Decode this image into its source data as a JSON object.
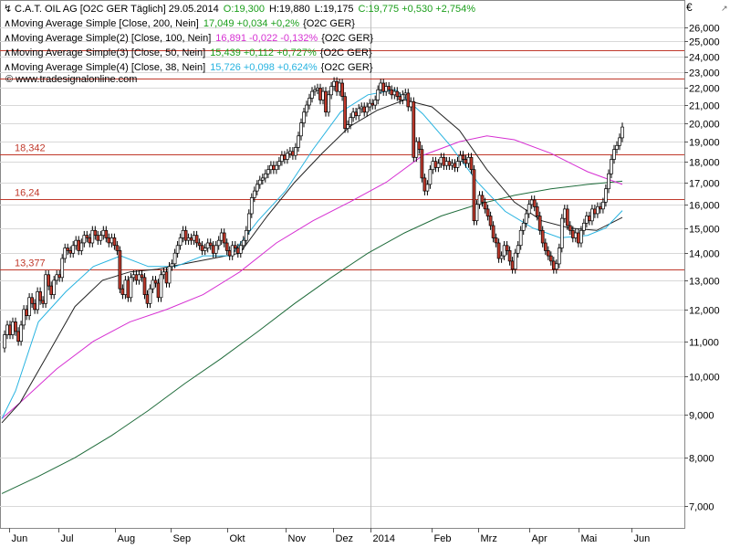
{
  "chart_data": {
    "type": "candlestick",
    "header": {
      "symbol_line": "C.A.T. OIL AG [O2C GER  Täglich] 29.05.2014",
      "open": "O:19,300",
      "high": "H:19,880",
      "low": "L:19,175",
      "close": "C:19,775 +0,530 +2,754%"
    },
    "indicators": [
      {
        "label": "Moving Average Simple [Close, 200, Nein]",
        "value": "17,049 +0,034 +0,2%",
        "suffix": "{O2C GER}",
        "color": "#1e6b3a"
      },
      {
        "label": "Moving Average Simple(2) [Close, 100, Nein]",
        "value": "16,891 -0,022 -0,132%",
        "suffix": "{O2C GER}",
        "color": "#d62fd2"
      },
      {
        "label": "Moving Average Simple(3) [Close, 50, Nein]",
        "value": "15,439 +0,112 +0,727%",
        "suffix": "{O2C GER}",
        "color": "#222222"
      },
      {
        "label": "Moving Average Simple(4) [Close, 38, Nein]",
        "value": "15,726 +0,098 +0,624%",
        "suffix": "{O2C GER}",
        "color": "#27b3e0"
      }
    ],
    "value_color": "#1a9e1a",
    "negative_color": "#cc0000",
    "watermark": "© www.tradesignalonline.com",
    "currency": "€",
    "log_scale": true,
    "ylim": [
      6.6,
      28.0
    ],
    "y_ticks": [
      "26,000",
      "25,000",
      "24,000",
      "23,000",
      "22,000",
      "21,000",
      "20,000",
      "19,000",
      "18,000",
      "17,000",
      "16,000",
      "15,000",
      "14,000",
      "13,000",
      "12,000",
      "11,000",
      "10,000",
      "9,000",
      "8,000",
      "7,000"
    ],
    "x_ticks": [
      "Jun",
      "Jul",
      "Aug",
      "Sep",
      "Okt",
      "Nov",
      "Dez",
      "2014",
      "Feb",
      "Mrz",
      "Apr",
      "Mai",
      "Jun"
    ],
    "support_lines": [
      {
        "label": "18,342",
        "value": 18.342
      },
      {
        "label": "16,24",
        "value": 16.24
      },
      {
        "label": "13,377",
        "value": 13.377
      }
    ],
    "extra_lines": [
      22.6,
      24.4
    ],
    "close_series": [
      [
        0,
        10.8
      ],
      [
        3,
        11.2
      ],
      [
        6,
        11.5
      ],
      [
        9,
        11.2
      ],
      [
        12,
        11.6
      ],
      [
        15,
        11.3
      ],
      [
        18,
        11.0
      ],
      [
        21,
        11.5
      ],
      [
        24,
        12.0
      ],
      [
        27,
        11.8
      ],
      [
        30,
        12.4
      ],
      [
        33,
        12.2
      ],
      [
        36,
        12.0
      ],
      [
        39,
        12.6
      ],
      [
        42,
        12.3
      ],
      [
        45,
        12.2
      ],
      [
        48,
        13.2
      ],
      [
        51,
        12.8
      ],
      [
        54,
        12.5
      ],
      [
        57,
        13.0
      ],
      [
        60,
        13.2
      ],
      [
        63,
        13.1
      ],
      [
        66,
        13.8
      ],
      [
        69,
        14.2
      ],
      [
        72,
        14.1
      ],
      [
        75,
        14.0
      ],
      [
        78,
        14.3
      ],
      [
        81,
        14.5
      ],
      [
        84,
        14.1
      ],
      [
        87,
        14.4
      ],
      [
        90,
        14.7
      ],
      [
        93,
        14.6
      ],
      [
        96,
        14.4
      ],
      [
        99,
        14.9
      ],
      [
        102,
        14.7
      ],
      [
        105,
        14.5
      ],
      [
        108,
        14.7
      ],
      [
        111,
        14.9
      ],
      [
        114,
        14.6
      ],
      [
        117,
        14.4
      ],
      [
        120,
        14.6
      ],
      [
        123,
        14.3
      ],
      [
        126,
        14.1
      ],
      [
        129,
        12.7
      ],
      [
        132,
        12.5
      ],
      [
        135,
        13.0
      ],
      [
        138,
        12.4
      ],
      [
        141,
        13.1
      ],
      [
        144,
        13.2
      ],
      [
        147,
        13.0
      ],
      [
        150,
        13.2
      ],
      [
        153,
        13.1
      ],
      [
        156,
        12.5
      ],
      [
        159,
        12.2
      ],
      [
        162,
        12.7
      ],
      [
        165,
        13.0
      ],
      [
        168,
        12.9
      ],
      [
        171,
        12.4
      ],
      [
        174,
        13.2
      ],
      [
        177,
        13.3
      ],
      [
        180,
        12.9
      ],
      [
        183,
        13.5
      ],
      [
        186,
        13.6
      ],
      [
        189,
        14.0
      ],
      [
        192,
        14.3
      ],
      [
        195,
        14.6
      ],
      [
        198,
        14.9
      ],
      [
        201,
        14.5
      ],
      [
        204,
        14.6
      ],
      [
        207,
        14.5
      ],
      [
        210,
        14.7
      ],
      [
        213,
        14.4
      ],
      [
        216,
        14.3
      ],
      [
        219,
        14.1
      ],
      [
        222,
        14.2
      ],
      [
        225,
        14.4
      ],
      [
        228,
        14.3
      ],
      [
        231,
        14.0
      ],
      [
        234,
        14.3
      ],
      [
        237,
        14.5
      ],
      [
        240,
        14.8
      ],
      [
        243,
        14.4
      ],
      [
        246,
        14.1
      ],
      [
        249,
        13.9
      ],
      [
        252,
        14.3
      ],
      [
        255,
        14.2
      ],
      [
        258,
        14.0
      ],
      [
        261,
        14.3
      ],
      [
        264,
        14.5
      ],
      [
        267,
        14.9
      ],
      [
        270,
        15.6
      ],
      [
        273,
        16.3
      ],
      [
        276,
        16.6
      ],
      [
        279,
        16.9
      ],
      [
        282,
        17.1
      ],
      [
        285,
        17.2
      ],
      [
        288,
        17.4
      ],
      [
        291,
        17.6
      ],
      [
        294,
        17.8
      ],
      [
        297,
        17.6
      ],
      [
        300,
        17.8
      ],
      [
        303,
        18.0
      ],
      [
        306,
        18.3
      ],
      [
        309,
        18.1
      ],
      [
        312,
        18.4
      ],
      [
        315,
        18.5
      ],
      [
        318,
        18.3
      ],
      [
        321,
        18.7
      ],
      [
        324,
        19.3
      ],
      [
        327,
        20.0
      ],
      [
        330,
        20.6
      ],
      [
        333,
        21.0
      ],
      [
        336,
        21.4
      ],
      [
        339,
        21.8
      ],
      [
        342,
        21.9
      ],
      [
        345,
        22.0
      ],
      [
        348,
        21.3
      ],
      [
        351,
        21.8
      ],
      [
        354,
        20.6
      ],
      [
        357,
        21.6
      ],
      [
        360,
        22.1
      ],
      [
        363,
        22.4
      ],
      [
        366,
        21.8
      ],
      [
        369,
        22.3
      ],
      [
        372,
        21.5
      ],
      [
        375,
        19.7
      ],
      [
        378,
        19.9
      ],
      [
        381,
        20.3
      ],
      [
        384,
        20.6
      ],
      [
        387,
        20.4
      ],
      [
        390,
        20.8
      ],
      [
        393,
        20.9
      ],
      [
        396,
        20.6
      ],
      [
        399,
        20.9
      ],
      [
        402,
        21.1
      ],
      [
        405,
        21.0
      ],
      [
        408,
        21.3
      ],
      [
        411,
        21.9
      ],
      [
        414,
        22.3
      ],
      [
        417,
        21.8
      ],
      [
        420,
        22.1
      ],
      [
        423,
        21.9
      ],
      [
        426,
        21.6
      ],
      [
        429,
        21.8
      ],
      [
        432,
        21.5
      ],
      [
        435,
        21.3
      ],
      [
        438,
        21.6
      ],
      [
        441,
        21.7
      ],
      [
        444,
        20.9
      ],
      [
        447,
        21.2
      ],
      [
        450,
        18.2
      ],
      [
        453,
        19.0
      ],
      [
        456,
        18.6
      ],
      [
        459,
        17.2
      ],
      [
        462,
        16.6
      ],
      [
        465,
        16.9
      ],
      [
        468,
        17.6
      ],
      [
        471,
        18.0
      ],
      [
        474,
        17.7
      ],
      [
        477,
        17.9
      ],
      [
        480,
        18.2
      ],
      [
        483,
        17.8
      ],
      [
        486,
        18.0
      ],
      [
        489,
        17.8
      ],
      [
        492,
        17.9
      ],
      [
        495,
        17.7
      ],
      [
        498,
        18.0
      ],
      [
        501,
        18.3
      ],
      [
        504,
        18.1
      ],
      [
        507,
        17.9
      ],
      [
        510,
        18.2
      ],
      [
        513,
        17.6
      ],
      [
        516,
        15.3
      ],
      [
        519,
        16.0
      ],
      [
        522,
        16.4
      ],
      [
        525,
        16.1
      ],
      [
        528,
        15.8
      ],
      [
        531,
        15.5
      ],
      [
        534,
        15.1
      ],
      [
        537,
        14.6
      ],
      [
        540,
        14.4
      ],
      [
        543,
        13.8
      ],
      [
        546,
        13.9
      ],
      [
        549,
        14.3
      ],
      [
        552,
        14.1
      ],
      [
        555,
        13.7
      ],
      [
        558,
        13.4
      ],
      [
        561,
        14.0
      ],
      [
        564,
        14.3
      ],
      [
        567,
        14.9
      ],
      [
        570,
        15.2
      ],
      [
        573,
        15.6
      ],
      [
        576,
        16.0
      ],
      [
        579,
        16.2
      ],
      [
        582,
        15.9
      ],
      [
        585,
        15.5
      ],
      [
        588,
        14.9
      ],
      [
        591,
        14.4
      ],
      [
        594,
        14.1
      ],
      [
        597,
        13.9
      ],
      [
        600,
        13.7
      ],
      [
        603,
        13.4
      ],
      [
        606,
        13.6
      ],
      [
        609,
        14.2
      ],
      [
        612,
        15.4
      ],
      [
        615,
        15.8
      ],
      [
        618,
        15.1
      ],
      [
        621,
        14.9
      ],
      [
        624,
        14.6
      ],
      [
        627,
        14.8
      ],
      [
        630,
        14.4
      ],
      [
        633,
        14.9
      ],
      [
        636,
        15.2
      ],
      [
        639,
        15.5
      ],
      [
        642,
        15.3
      ],
      [
        645,
        15.8
      ],
      [
        648,
        15.6
      ],
      [
        651,
        15.9
      ],
      [
        654,
        15.8
      ],
      [
        657,
        16.1
      ],
      [
        660,
        16.7
      ],
      [
        663,
        17.4
      ],
      [
        666,
        18.1
      ],
      [
        669,
        18.6
      ],
      [
        672,
        18.8
      ],
      [
        675,
        19.2
      ],
      [
        678,
        19.775
      ]
    ],
    "sma200": [
      [
        0,
        7.25
      ],
      [
        40,
        7.6
      ],
      [
        80,
        8.0
      ],
      [
        120,
        8.5
      ],
      [
        160,
        9.1
      ],
      [
        200,
        9.8
      ],
      [
        240,
        10.5
      ],
      [
        280,
        11.3
      ],
      [
        320,
        12.2
      ],
      [
        360,
        13.1
      ],
      [
        400,
        14.0
      ],
      [
        440,
        14.8
      ],
      [
        480,
        15.5
      ],
      [
        520,
        16.0
      ],
      [
        560,
        16.4
      ],
      [
        600,
        16.7
      ],
      [
        640,
        16.9
      ],
      [
        678,
        17.05
      ]
    ],
    "sma100": [
      [
        0,
        8.9
      ],
      [
        20,
        9.3
      ],
      [
        60,
        10.2
      ],
      [
        100,
        11.0
      ],
      [
        140,
        11.6
      ],
      [
        180,
        12.0
      ],
      [
        220,
        12.5
      ],
      [
        260,
        13.3
      ],
      [
        300,
        14.4
      ],
      [
        340,
        15.3
      ],
      [
        380,
        16.1
      ],
      [
        420,
        17.0
      ],
      [
        460,
        18.3
      ],
      [
        500,
        19.0
      ],
      [
        530,
        19.3
      ],
      [
        560,
        19.1
      ],
      [
        600,
        18.4
      ],
      [
        640,
        17.5
      ],
      [
        678,
        16.9
      ]
    ],
    "sma50": [
      [
        0,
        8.8
      ],
      [
        20,
        9.3
      ],
      [
        50,
        10.6
      ],
      [
        80,
        12.1
      ],
      [
        110,
        13.0
      ],
      [
        140,
        13.3
      ],
      [
        170,
        13.4
      ],
      [
        200,
        13.6
      ],
      [
        230,
        13.8
      ],
      [
        260,
        14.0
      ],
      [
        290,
        15.5
      ],
      [
        320,
        17.0
      ],
      [
        350,
        18.4
      ],
      [
        380,
        19.8
      ],
      [
        410,
        20.7
      ],
      [
        440,
        21.3
      ],
      [
        470,
        20.9
      ],
      [
        500,
        19.6
      ],
      [
        530,
        17.6
      ],
      [
        560,
        16.1
      ],
      [
        590,
        15.3
      ],
      [
        620,
        15.0
      ],
      [
        650,
        14.9
      ],
      [
        678,
        15.44
      ]
    ],
    "sma38": [
      [
        0,
        8.9
      ],
      [
        15,
        9.6
      ],
      [
        40,
        11.6
      ],
      [
        70,
        12.6
      ],
      [
        100,
        13.5
      ],
      [
        130,
        13.9
      ],
      [
        160,
        13.5
      ],
      [
        190,
        13.5
      ],
      [
        220,
        13.9
      ],
      [
        250,
        13.9
      ],
      [
        280,
        15.3
      ],
      [
        310,
        16.6
      ],
      [
        340,
        18.6
      ],
      [
        370,
        20.6
      ],
      [
        400,
        21.6
      ],
      [
        430,
        21.9
      ],
      [
        460,
        20.5
      ],
      [
        490,
        18.8
      ],
      [
        520,
        17.0
      ],
      [
        550,
        15.7
      ],
      [
        580,
        15.0
      ],
      [
        610,
        14.6
      ],
      [
        640,
        14.7
      ],
      [
        660,
        15.0
      ],
      [
        678,
        15.73
      ]
    ]
  }
}
